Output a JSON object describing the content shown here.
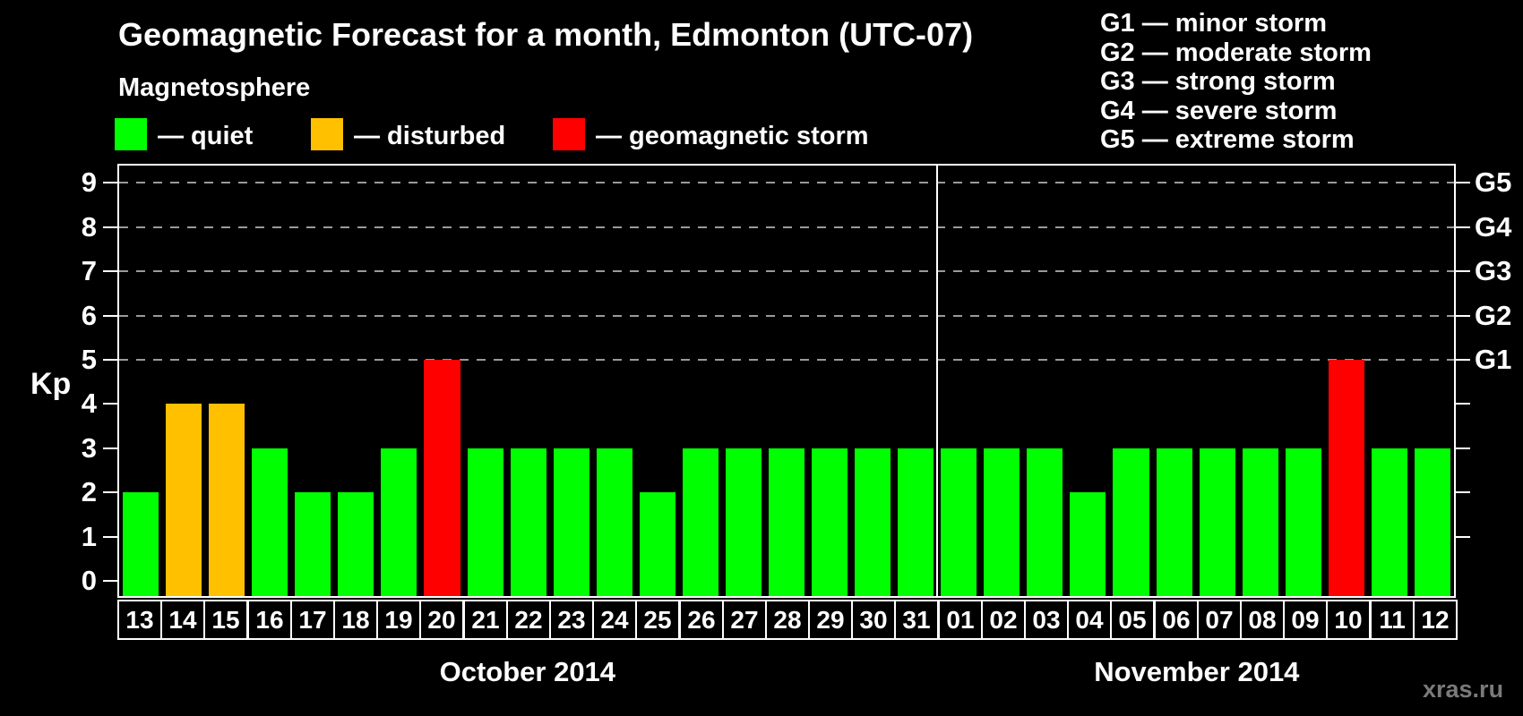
{
  "title": "Geomagnetic Forecast for a month, Edmonton (UTC-07)",
  "legend": {
    "heading": "Magnetosphere",
    "items": [
      {
        "key": "quiet",
        "label": "— quiet",
        "color": "#00ff00"
      },
      {
        "key": "disturbed",
        "label": "— disturbed",
        "color": "#ffc000"
      },
      {
        "key": "storm",
        "label": "— geomagnetic storm",
        "color": "#ff0000"
      }
    ]
  },
  "g_legend": [
    "G1 — minor storm",
    "G2 — moderate storm",
    "G3 — strong storm",
    "G4 — severe storm",
    "G5 — extreme storm"
  ],
  "watermark": "xras.ru",
  "chart_data": {
    "type": "bar",
    "title": "Geomagnetic Forecast for a month, Edmonton (UTC-07)",
    "ylabel": "Kp",
    "ylim": [
      0,
      9
    ],
    "y_ticks": [
      "0",
      "1",
      "2",
      "3",
      "4",
      "5",
      "6",
      "7",
      "8",
      "9"
    ],
    "grid_levels": [
      5,
      6,
      7,
      8,
      9
    ],
    "right_axis_labels": [
      {
        "label": "G1",
        "kp": 5
      },
      {
        "label": "G2",
        "kp": 6
      },
      {
        "label": "G3",
        "kp": 7
      },
      {
        "label": "G4",
        "kp": 8
      },
      {
        "label": "G5",
        "kp": 9
      }
    ],
    "status_colors": {
      "quiet": "#00ff00",
      "disturbed": "#ffc000",
      "storm": "#ff0000"
    },
    "months": [
      {
        "label": "October 2014",
        "days": [
          "13",
          "14",
          "15",
          "16",
          "17",
          "18",
          "19",
          "20",
          "21",
          "22",
          "23",
          "24",
          "25",
          "26",
          "27",
          "28",
          "29",
          "30",
          "31"
        ],
        "values": [
          2,
          4,
          4,
          3,
          2,
          2,
          3,
          5,
          3,
          3,
          3,
          3,
          2,
          3,
          3,
          3,
          3,
          3,
          3
        ],
        "statuses": [
          "quiet",
          "disturbed",
          "disturbed",
          "quiet",
          "quiet",
          "quiet",
          "quiet",
          "storm",
          "quiet",
          "quiet",
          "quiet",
          "quiet",
          "quiet",
          "quiet",
          "quiet",
          "quiet",
          "quiet",
          "quiet",
          "quiet"
        ]
      },
      {
        "label": "November 2014",
        "days": [
          "01",
          "02",
          "03",
          "04",
          "05",
          "06",
          "07",
          "08",
          "09",
          "10",
          "11",
          "12"
        ],
        "values": [
          3,
          3,
          3,
          2,
          3,
          3,
          3,
          3,
          3,
          5,
          3,
          3
        ],
        "statuses": [
          "quiet",
          "quiet",
          "quiet",
          "quiet",
          "quiet",
          "quiet",
          "quiet",
          "quiet",
          "quiet",
          "storm",
          "quiet",
          "quiet"
        ]
      }
    ]
  }
}
